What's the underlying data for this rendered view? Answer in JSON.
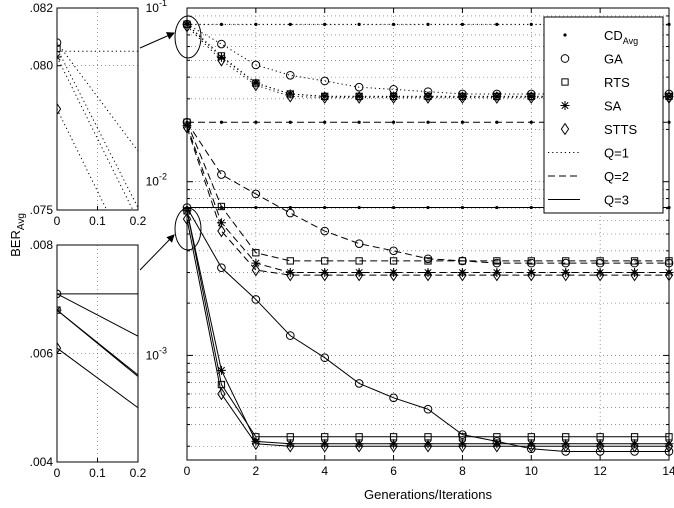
{
  "chart_data": [
    {
      "id": "main",
      "type": "line",
      "xlabel": "Generations/Iterations",
      "ylabel": "BER",
      "ylabel_sub": "Avg",
      "yscale": "log",
      "xlim": [
        0,
        14
      ],
      "ylim": [
        0.00025,
        0.1
      ],
      "x_ticks": [
        "0",
        "2",
        "4",
        "6",
        "8",
        "10",
        "12",
        "14"
      ],
      "y_ticks": [
        {
          "value": 0.1,
          "base": "10",
          "exp": "-1"
        },
        {
          "value": 0.01,
          "base": "10",
          "exp": "-2"
        },
        {
          "value": 0.001,
          "base": "10",
          "exp": "-3"
        }
      ],
      "grid": true,
      "legend_position": "top-right",
      "legend": [
        {
          "label": "CD",
          "sub": "Avg",
          "marker": "dot",
          "line": "none"
        },
        {
          "label": "GA",
          "marker": "circle",
          "line": "none"
        },
        {
          "label": "RTS",
          "marker": "square",
          "line": "none"
        },
        {
          "label": "SA",
          "marker": "star",
          "line": "none"
        },
        {
          "label": "STTS",
          "marker": "diamond",
          "line": "none"
        },
        {
          "label": "Q=1",
          "marker": "none",
          "line": "dotted"
        },
        {
          "label": "Q=2",
          "marker": "none",
          "line": "dashed"
        },
        {
          "label": "Q=3",
          "marker": "none",
          "line": "solid"
        }
      ],
      "x": [
        0,
        1,
        2,
        3,
        4,
        5,
        6,
        7,
        8,
        9,
        10,
        11,
        12,
        13,
        14
      ],
      "series": [
        {
          "algo": "CD",
          "q": 1,
          "marker": "dot",
          "line": "dotted",
          "values": [
            0.0805,
            0.0805,
            0.0805,
            0.0805,
            0.0805,
            0.0805,
            0.0805,
            0.0805,
            0.0805,
            0.0805,
            0.0805,
            0.0805,
            0.0805,
            0.0805,
            0.0805
          ]
        },
        {
          "algo": "CD",
          "q": 2,
          "marker": "dot",
          "line": "dashed",
          "values": [
            0.022,
            0.022,
            0.022,
            0.022,
            0.022,
            0.022,
            0.022,
            0.022,
            0.022,
            0.022,
            0.022,
            0.022,
            0.022,
            0.022,
            0.022
          ]
        },
        {
          "algo": "CD",
          "q": 3,
          "marker": "dot",
          "line": "solid",
          "values": [
            0.0071,
            0.0071,
            0.0071,
            0.0071,
            0.0071,
            0.0071,
            0.0071,
            0.0071,
            0.0071,
            0.0071,
            0.0071,
            0.0071,
            0.0071,
            0.0071,
            0.0071
          ]
        },
        {
          "algo": "GA",
          "q": 1,
          "marker": "circle",
          "line": "dotted",
          "values": [
            0.0808,
            0.062,
            0.047,
            0.041,
            0.038,
            0.035,
            0.034,
            0.033,
            0.032,
            0.032,
            0.032,
            0.032,
            0.032,
            0.032,
            0.032
          ]
        },
        {
          "algo": "RTS",
          "q": 1,
          "marker": "square",
          "line": "dotted",
          "values": [
            0.0806,
            0.053,
            0.037,
            0.032,
            0.031,
            0.031,
            0.031,
            0.031,
            0.031,
            0.031,
            0.031,
            0.031,
            0.031,
            0.031,
            0.031
          ]
        },
        {
          "algo": "SA",
          "q": 1,
          "marker": "star",
          "line": "dotted",
          "values": [
            0.0803,
            0.052,
            0.037,
            0.032,
            0.031,
            0.031,
            0.031,
            0.031,
            0.031,
            0.031,
            0.031,
            0.031,
            0.031,
            0.031,
            0.031
          ]
        },
        {
          "algo": "STTS",
          "q": 1,
          "marker": "diamond",
          "line": "dotted",
          "values": [
            0.0785,
            0.05,
            0.036,
            0.031,
            0.0305,
            0.0305,
            0.0305,
            0.0305,
            0.0305,
            0.0305,
            0.0305,
            0.0305,
            0.0305,
            0.0305,
            0.0305
          ]
        },
        {
          "algo": "GA",
          "q": 2,
          "marker": "circle",
          "line": "dashed",
          "values": [
            0.022,
            0.011,
            0.0085,
            0.0066,
            0.0052,
            0.0044,
            0.004,
            0.0036,
            0.0035,
            0.0034,
            0.0034,
            0.0034,
            0.0034,
            0.0034,
            0.0034
          ]
        },
        {
          "algo": "RTS",
          "q": 2,
          "marker": "square",
          "line": "dashed",
          "values": [
            0.022,
            0.0072,
            0.0039,
            0.0035,
            0.0035,
            0.0035,
            0.0035,
            0.0035,
            0.0035,
            0.0035,
            0.0035,
            0.0035,
            0.0035,
            0.0035,
            0.0035
          ]
        },
        {
          "algo": "SA",
          "q": 2,
          "marker": "star",
          "line": "dashed",
          "values": [
            0.021,
            0.0058,
            0.0034,
            0.003,
            0.003,
            0.003,
            0.003,
            0.003,
            0.003,
            0.003,
            0.003,
            0.003,
            0.003,
            0.003,
            0.003
          ]
        },
        {
          "algo": "STTS",
          "q": 2,
          "marker": "diamond",
          "line": "dashed",
          "values": [
            0.0205,
            0.0052,
            0.0031,
            0.0029,
            0.0029,
            0.0029,
            0.0029,
            0.0029,
            0.0029,
            0.0029,
            0.0029,
            0.0029,
            0.0029,
            0.0029,
            0.0029
          ]
        },
        {
          "algo": "GA",
          "q": 3,
          "marker": "circle",
          "line": "solid",
          "values": [
            0.0071,
            0.0032,
            0.0021,
            0.0013,
            0.00097,
            0.00069,
            0.00057,
            0.00049,
            0.00035,
            0.00032,
            0.00029,
            0.00028,
            0.00028,
            0.00028,
            0.00028
          ]
        },
        {
          "algo": "RTS",
          "q": 3,
          "marker": "square",
          "line": "solid",
          "values": [
            0.0068,
            0.00068,
            0.00034,
            0.00034,
            0.00034,
            0.00034,
            0.00034,
            0.00034,
            0.00034,
            0.00034,
            0.00034,
            0.00034,
            0.00034,
            0.00034,
            0.00034
          ]
        },
        {
          "algo": "SA",
          "q": 3,
          "marker": "star",
          "line": "solid",
          "values": [
            0.0068,
            0.00082,
            0.00032,
            0.00031,
            0.00031,
            0.00031,
            0.00031,
            0.00031,
            0.00031,
            0.00031,
            0.00031,
            0.00031,
            0.00031,
            0.00031,
            0.00031
          ]
        },
        {
          "algo": "STTS",
          "q": 3,
          "marker": "diamond",
          "line": "solid",
          "values": [
            0.0061,
            0.0006,
            0.00031,
            0.0003,
            0.0003,
            0.0003,
            0.0003,
            0.0003,
            0.0003,
            0.0003,
            0.0003,
            0.0003,
            0.0003,
            0.0003,
            0.0003
          ]
        }
      ]
    },
    {
      "id": "inset-top",
      "type": "line",
      "yscale": "linear",
      "xlim": [
        0,
        0.2
      ],
      "ylim": [
        0.075,
        0.082
      ],
      "x_ticks": [
        "0",
        "0.1",
        "0.2"
      ],
      "y_ticks": [
        ".082",
        ".080",
        ".075"
      ],
      "y_tick_values": [
        0.082,
        0.08,
        0.075
      ],
      "grid": true,
      "zooms_into": "Q=1 at x = 0"
    },
    {
      "id": "inset-bottom",
      "type": "line",
      "yscale": "linear",
      "xlim": [
        0,
        0.2
      ],
      "ylim": [
        0.004,
        0.008
      ],
      "x_ticks": [
        "0",
        "0.1",
        "0.2"
      ],
      "y_ticks": [
        ".008",
        ".006",
        ".004"
      ],
      "y_tick_values": [
        0.008,
        0.006,
        0.004
      ],
      "grid": true,
      "zooms_into": "Q=3 at x = 0"
    }
  ]
}
